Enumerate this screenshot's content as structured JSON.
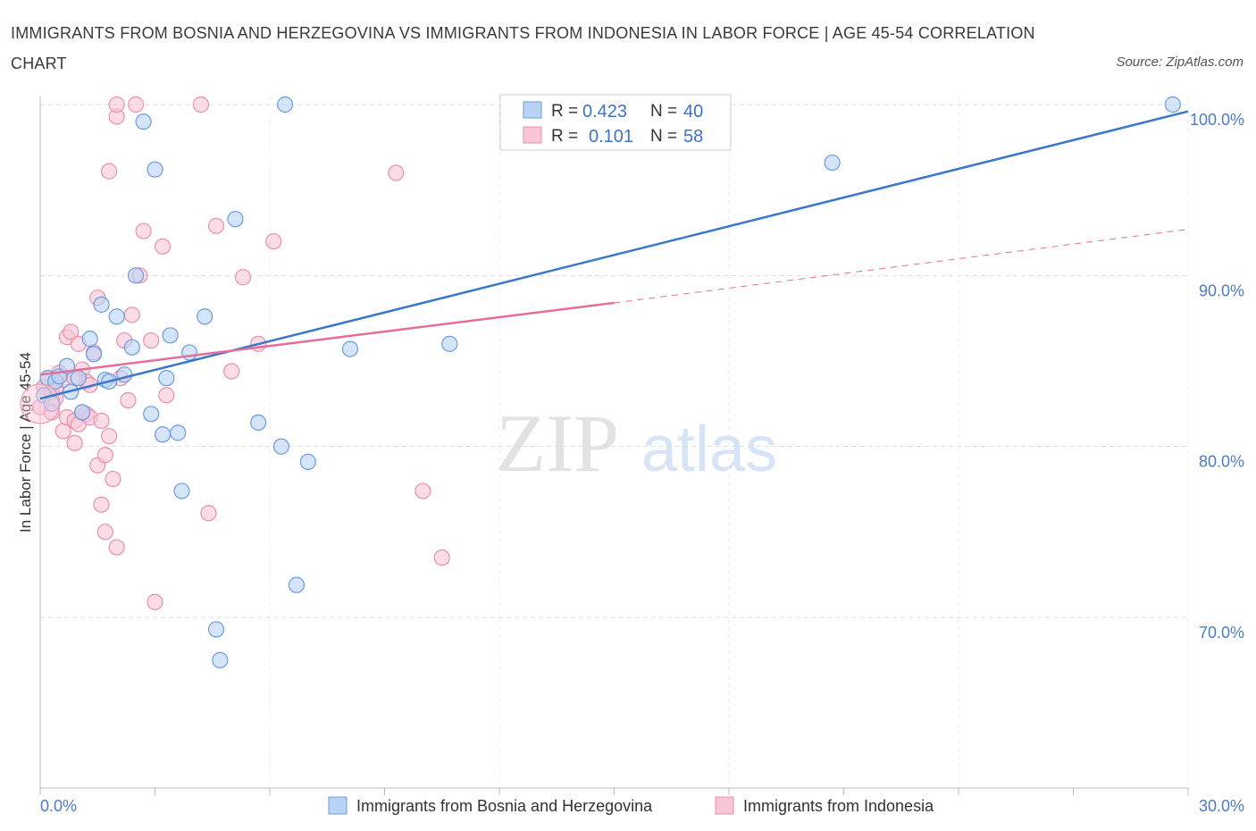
{
  "title": "IMMIGRANTS FROM BOSNIA AND HERZEGOVINA VS IMMIGRANTS FROM INDONESIA IN LABOR FORCE | AGE 45-54 CORRELATION CHART",
  "source": "Source: ZipAtlas.com",
  "watermark": {
    "zip": "ZIP",
    "atlas": "atlas"
  },
  "colors": {
    "blue_fill": "#b9d3f5",
    "blue_stroke": "#6a9be0",
    "blue_line": "#3b78cc",
    "pink_fill": "#f8c6d6",
    "pink_stroke": "#ea8fae",
    "pink_line": "#e46d99",
    "grid": "#dddddd",
    "tick_text": "#4a7cc9"
  },
  "legend": {
    "rows": [
      {
        "r_label": "R =",
        "r_value": "0.423",
        "n_label": "N =",
        "n_value": "40"
      },
      {
        "r_label": "R =",
        "r_value": "0.101",
        "n_label": "N =",
        "n_value": "58"
      }
    ]
  },
  "bottom_legend": [
    "Immigrants from Bosnia and Herzegovina",
    "Immigrants from Indonesia"
  ],
  "chart_data": {
    "type": "scatter",
    "xlabel": "",
    "ylabel": "In Labor Force | Age 45-54",
    "xlim": [
      0,
      30
    ],
    "ylim": [
      60,
      100
    ],
    "x_tick_labels": [
      "0.0%",
      "30.0%"
    ],
    "y_ticks": [
      70,
      80,
      90,
      100
    ],
    "y_tick_labels": [
      "70.0%",
      "80.0%",
      "90.0%",
      "100.0%"
    ],
    "grid": true,
    "legend_position": "top-center",
    "series": [
      {
        "name": "Immigrants from Bosnia and Herzegovina",
        "color": "#6a9be0",
        "points": [
          [
            0.1,
            83.0
          ],
          [
            0.2,
            84.0
          ],
          [
            0.3,
            82.5
          ],
          [
            0.4,
            83.8
          ],
          [
            0.5,
            84.1
          ],
          [
            0.7,
            84.7
          ],
          [
            0.8,
            83.2
          ],
          [
            1.0,
            84.0
          ],
          [
            1.1,
            82.0
          ],
          [
            1.3,
            86.3
          ],
          [
            1.4,
            85.4
          ],
          [
            1.6,
            88.3
          ],
          [
            1.7,
            83.9
          ],
          [
            1.8,
            83.8
          ],
          [
            2.0,
            87.6
          ],
          [
            2.2,
            84.2
          ],
          [
            2.4,
            85.8
          ],
          [
            2.5,
            90.0
          ],
          [
            2.7,
            99.0
          ],
          [
            2.9,
            81.9
          ],
          [
            3.0,
            96.2
          ],
          [
            3.2,
            80.7
          ],
          [
            3.3,
            84.0
          ],
          [
            3.4,
            86.5
          ],
          [
            3.6,
            80.8
          ],
          [
            3.7,
            77.4
          ],
          [
            3.9,
            85.5
          ],
          [
            4.3,
            87.6
          ],
          [
            4.6,
            69.3
          ],
          [
            4.7,
            67.5
          ],
          [
            5.1,
            93.3
          ],
          [
            5.7,
            81.4
          ],
          [
            6.3,
            80.0
          ],
          [
            6.4,
            100.0
          ],
          [
            6.7,
            71.9
          ],
          [
            7.0,
            79.1
          ],
          [
            8.1,
            85.7
          ],
          [
            10.7,
            86.0
          ],
          [
            20.7,
            96.6
          ],
          [
            29.6,
            100.0
          ]
        ]
      },
      {
        "name": "Immigrants from Indonesia",
        "color": "#ea8fae",
        "points": [
          [
            0.0,
            82.3
          ],
          [
            0.1,
            83.5
          ],
          [
            0.2,
            84.0
          ],
          [
            0.3,
            83.2
          ],
          [
            0.4,
            82.8
          ],
          [
            0.5,
            84.3
          ],
          [
            0.6,
            83.9
          ],
          [
            0.6,
            80.9
          ],
          [
            0.7,
            81.7
          ],
          [
            0.7,
            86.4
          ],
          [
            0.8,
            86.7
          ],
          [
            0.9,
            81.5
          ],
          [
            0.9,
            80.2
          ],
          [
            1.0,
            81.3
          ],
          [
            1.0,
            86.0
          ],
          [
            1.1,
            84.5
          ],
          [
            1.2,
            83.8
          ],
          [
            1.2,
            81.9
          ],
          [
            1.3,
            83.6
          ],
          [
            1.3,
            81.7
          ],
          [
            1.4,
            85.5
          ],
          [
            1.5,
            88.7
          ],
          [
            1.5,
            78.9
          ],
          [
            1.6,
            76.6
          ],
          [
            1.6,
            81.5
          ],
          [
            1.7,
            75.0
          ],
          [
            1.7,
            79.5
          ],
          [
            1.8,
            80.6
          ],
          [
            1.8,
            96.1
          ],
          [
            1.9,
            78.1
          ],
          [
            2.0,
            74.1
          ],
          [
            2.0,
            99.3
          ],
          [
            2.0,
            100.0
          ],
          [
            2.1,
            84.0
          ],
          [
            2.2,
            86.2
          ],
          [
            2.3,
            82.7
          ],
          [
            2.4,
            87.7
          ],
          [
            2.5,
            100.0
          ],
          [
            2.6,
            90.0
          ],
          [
            2.7,
            92.6
          ],
          [
            2.9,
            86.2
          ],
          [
            3.0,
            70.9
          ],
          [
            3.2,
            91.7
          ],
          [
            3.3,
            83.0
          ],
          [
            4.2,
            100.0
          ],
          [
            4.4,
            76.1
          ],
          [
            4.6,
            92.9
          ],
          [
            5.0,
            84.4
          ],
          [
            5.3,
            89.9
          ],
          [
            5.7,
            86.0
          ],
          [
            6.1,
            92.0
          ],
          [
            9.3,
            96.0
          ],
          [
            10.0,
            77.4
          ],
          [
            10.5,
            73.5
          ],
          [
            0.3,
            82.0
          ],
          [
            0.4,
            83.4
          ],
          [
            1.1,
            82.0
          ],
          [
            0.9,
            84.0
          ]
        ]
      }
    ],
    "trendlines": [
      {
        "series": "Immigrants from Bosnia and Herzegovina",
        "x": [
          0,
          30
        ],
        "y": [
          82.8,
          99.6
        ],
        "style": "solid"
      },
      {
        "series": "Immigrants from Indonesia",
        "x": [
          0,
          15
        ],
        "y": [
          84.2,
          88.4
        ],
        "style": "solid"
      },
      {
        "series": "Immigrants from Indonesia",
        "x": [
          15,
          30
        ],
        "y": [
          88.4,
          92.7
        ],
        "style": "dashed"
      }
    ]
  }
}
